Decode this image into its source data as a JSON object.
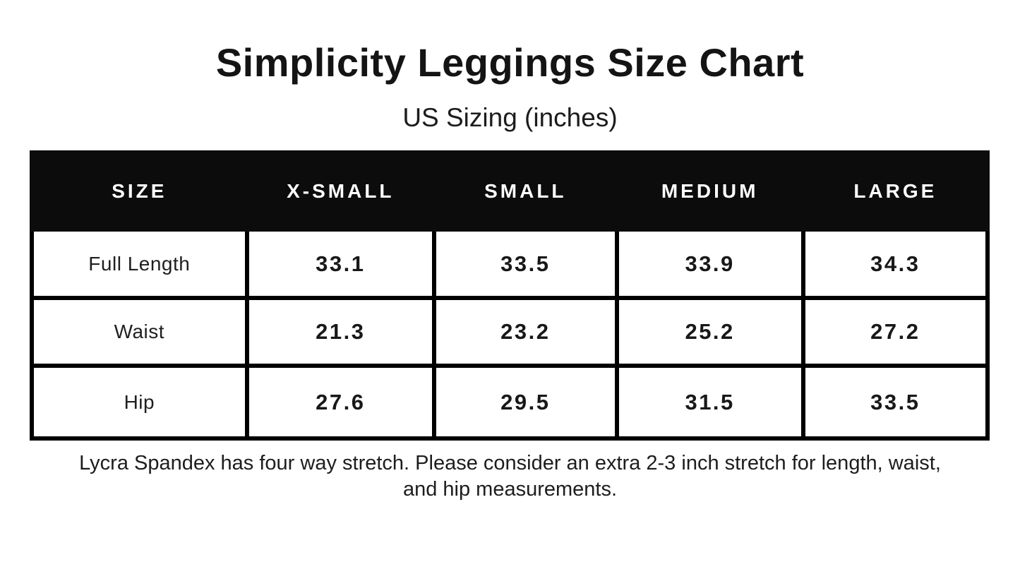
{
  "page": {
    "title": "Simplicity Leggings Size Chart",
    "subtitle": "US Sizing (inches)",
    "note_lines": [
      "Lycra Spandex has four way stretch. Please consider an extra 2-3 inch stretch for length, waist,",
      "and hip measurements."
    ]
  },
  "table": {
    "columns": [
      "SIZE",
      "X-SMALL",
      "SMALL",
      "MEDIUM",
      "LARGE"
    ],
    "rows": [
      {
        "label": "Full Length",
        "values": [
          "33.1",
          "33.5",
          "33.9",
          "34.3"
        ]
      },
      {
        "label": "Waist",
        "values": [
          "21.3",
          "23.2",
          "25.2",
          "27.2"
        ]
      },
      {
        "label": "Hip",
        "values": [
          "27.6",
          "29.5",
          "31.5",
          "33.5"
        ]
      }
    ]
  },
  "chart_data": {
    "type": "table",
    "title": "Simplicity Leggings Size Chart",
    "subtitle": "US Sizing (inches)",
    "unit": "inches",
    "columns": [
      "SIZE",
      "X-SMALL",
      "SMALL",
      "MEDIUM",
      "LARGE"
    ],
    "rows": [
      {
        "label": "Full Length",
        "values": [
          33.1,
          33.5,
          33.9,
          34.3
        ]
      },
      {
        "label": "Waist",
        "values": [
          21.3,
          23.2,
          25.2,
          27.2
        ]
      },
      {
        "label": "Hip",
        "values": [
          27.6,
          29.5,
          31.5,
          33.5
        ]
      }
    ],
    "note": "Lycra Spandex has four way stretch. Please consider an extra 2-3 inch stretch for length, waist, and hip measurements."
  },
  "colors": {
    "background": "#ffffff",
    "header_bg": "#0c0c0c",
    "header_text": "#ffffff",
    "border": "#000000",
    "text": "#1a1a1a"
  }
}
